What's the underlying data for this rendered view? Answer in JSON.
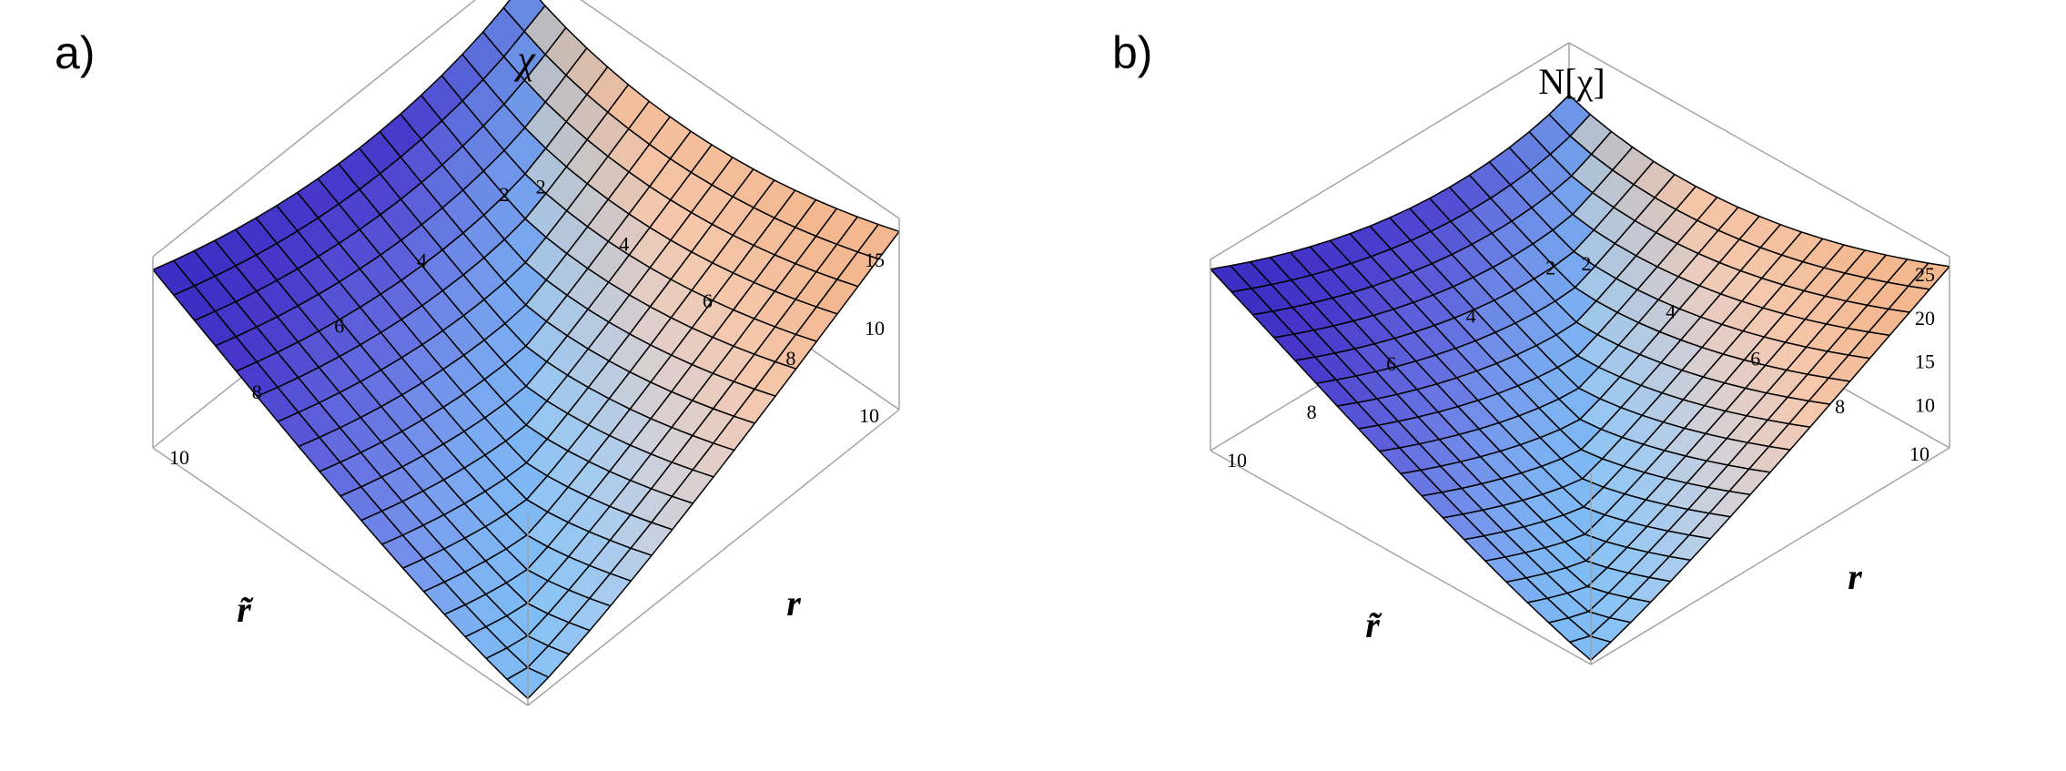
{
  "panels": [
    {
      "letter": "a)",
      "z_label": "χ",
      "x_label": "r̃",
      "y_label": "r"
    },
    {
      "letter": "b)",
      "z_label": "N[χ]",
      "x_label": "r̃",
      "y_label": "r"
    }
  ],
  "chart_data": [
    {
      "type": "surface",
      "title": "χ",
      "xlabel": "r̃",
      "ylabel": "r",
      "zlabel": "χ",
      "xlim": [
        1,
        10
      ],
      "ylim": [
        1,
        10
      ],
      "zlim": [
        4,
        18
      ],
      "x_ticks": [
        "2",
        "4",
        "6",
        "8",
        "10"
      ],
      "y_ticks": [
        "2",
        "4",
        "6",
        "8",
        "10"
      ],
      "z_ticks": [
        "10",
        "15"
      ],
      "grid_points_per_axis": 19,
      "approx_values": {
        "corner_r1_rt10": 16,
        "corner_r10_rt1": 16,
        "corner_r1_rt1": 16.5,
        "corner_r10_rt10": 4.5,
        "center_r5_rt5": 6.5
      },
      "colors": {
        "low": "#7fbff5",
        "high_left": "#f3b890",
        "high_right": "#3d2ec4"
      }
    },
    {
      "type": "surface",
      "title": "N[χ]",
      "xlabel": "r̃",
      "ylabel": "r",
      "zlabel": "N[χ]",
      "xlim": [
        1,
        10
      ],
      "ylim": [
        1,
        10
      ],
      "zlim": [
        5,
        27
      ],
      "x_ticks": [
        "2",
        "4",
        "6",
        "8",
        "10"
      ],
      "y_ticks": [
        "2",
        "4",
        "6",
        "8",
        "10"
      ],
      "z_ticks": [
        "10",
        "15",
        "20",
        "25"
      ],
      "grid_points_per_axis": 19,
      "approx_values": {
        "corner_r1_rt10": 25,
        "corner_r10_rt1": 25,
        "corner_r1_rt1": 21,
        "corner_r10_rt10": 5.5,
        "center_r5_rt5": 9
      },
      "colors": {
        "low": "#7fbff5",
        "high_left": "#f3b890",
        "high_right": "#3d2ec4"
      }
    }
  ]
}
